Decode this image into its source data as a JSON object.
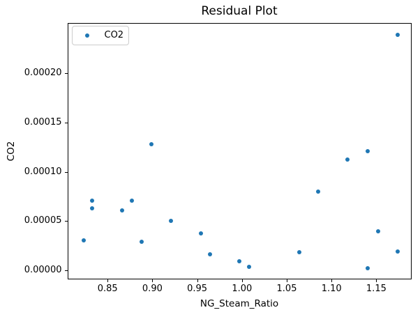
{
  "chart_data": {
    "type": "scatter",
    "title": "Residual Plot",
    "xlabel": "NG_Steam_Ratio",
    "ylabel": "CO2",
    "grid": false,
    "legend": {
      "position": "upper left",
      "entries": [
        {
          "label": "CO2",
          "marker_color": "#1f77b4"
        }
      ]
    },
    "xlim": [
      0.8051,
      1.1894
    ],
    "ylim": [
      -8.6e-06,
      0.0002506
    ],
    "x_ticks": [
      0.85,
      0.9,
      0.95,
      1.0,
      1.05,
      1.1,
      1.15
    ],
    "x_tick_labels": [
      "0.85",
      "0.90",
      "0.95",
      "1.00",
      "1.05",
      "1.10",
      "1.15"
    ],
    "y_ticks": [
      0.0,
      5e-05,
      0.0001,
      0.00015,
      0.0002
    ],
    "y_tick_labels": [
      "0.00000",
      "0.00005",
      "0.00010",
      "0.00015",
      "0.00020"
    ],
    "series": [
      {
        "name": "CO2",
        "color": "#1f77b4",
        "marker": "point",
        "points": [
          {
            "x": 0.823,
            "y": 3.08e-05
          },
          {
            "x": 0.833,
            "y": 7.1e-05
          },
          {
            "x": 0.833,
            "y": 6.28e-05
          },
          {
            "x": 0.866,
            "y": 6.11e-05
          },
          {
            "x": 0.877,
            "y": 7.1e-05
          },
          {
            "x": 0.888,
            "y": 2.89e-05
          },
          {
            "x": 0.899,
            "y": 0.000128
          },
          {
            "x": 0.921,
            "y": 5.03e-05
          },
          {
            "x": 0.954,
            "y": 3.78e-05
          },
          {
            "x": 0.964,
            "y": 1.64e-05
          },
          {
            "x": 0.997,
            "y": 9.4e-06
          },
          {
            "x": 1.008,
            "y": 4e-06
          },
          {
            "x": 1.064,
            "y": 1.84e-05
          },
          {
            "x": 1.085,
            "y": 7.98e-05
          },
          {
            "x": 1.118,
            "y": 0.0001127
          },
          {
            "x": 1.14,
            "y": 0.0001207
          },
          {
            "x": 1.14,
            "y": 2.1e-06
          },
          {
            "x": 1.152,
            "y": 3.97e-05
          },
          {
            "x": 1.174,
            "y": 0.0002388
          },
          {
            "x": 1.174,
            "y": 1.91e-05
          }
        ]
      }
    ]
  },
  "colors": {
    "background": "#ffffff",
    "spine": "#000000",
    "text": "#000000",
    "legend_border": "#cccccc",
    "marker": "#1f77b4"
  }
}
